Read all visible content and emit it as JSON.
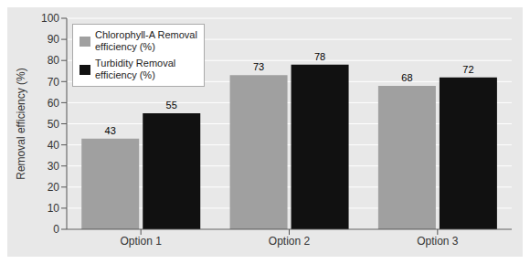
{
  "chart_data": {
    "type": "bar",
    "categories": [
      "Option 1",
      "Option 2",
      "Option 3"
    ],
    "series": [
      {
        "name": "Chlorophyll-A Removal\nefficiency (%)",
        "color": "#a0a0a0",
        "values": [
          43,
          73,
          68
        ]
      },
      {
        "name": "Turbidity Removal\nefficiency (%)",
        "color": "#111111",
        "values": [
          55,
          78,
          72
        ]
      }
    ],
    "y_label": "Removal efficiency (%)",
    "ylim": [
      0,
      100
    ],
    "yticks": [
      0,
      10,
      20,
      30,
      40,
      50,
      60,
      70,
      80,
      90,
      100
    ],
    "grid": true,
    "legend": "upper left",
    "data_labels": true
  }
}
